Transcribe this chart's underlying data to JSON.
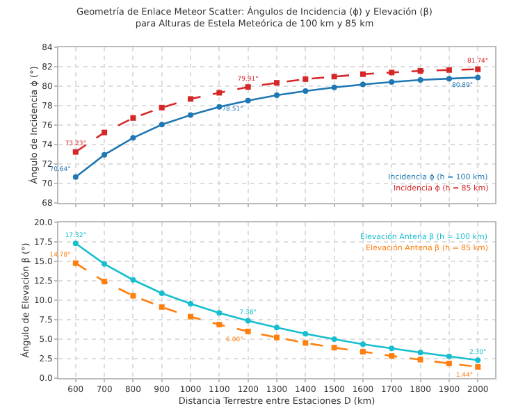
{
  "chart_data": [
    {
      "type": "line",
      "title": "Geometría de Enlace Meteor Scatter: Ángulos de Incidencia (ϕ) y Elevación (β)\npara Alturas de Estela Meteórica de 100 km y 85 km",
      "ylabel": "Ángulo de Incidencia ϕ (°)",
      "x": [
        600,
        700,
        800,
        900,
        1000,
        1100,
        1200,
        1300,
        1400,
        1500,
        1600,
        1700,
        1800,
        1900,
        2000
      ],
      "xlim": [
        540,
        2060
      ],
      "xticks": [
        600,
        700,
        800,
        900,
        1000,
        1100,
        1200,
        1300,
        1400,
        1500,
        1600,
        1700,
        1800,
        1900,
        2000
      ],
      "ylim": [
        68,
        84
      ],
      "yticks": [
        68,
        70,
        72,
        74,
        76,
        78,
        80,
        82,
        84
      ],
      "grid": true,
      "legend": "bottom right",
      "tick_labels": "y",
      "series": [
        {
          "name": "Incidencia ϕ (h = 100 km)",
          "color": "#1f77b4",
          "marker": "circle",
          "line_style": "solid",
          "values": [
            70.64,
            72.94,
            74.68,
            76.04,
            77.02,
            77.87,
            78.51,
            79.06,
            79.49,
            79.87,
            80.17,
            80.43,
            80.64,
            80.77,
            80.89
          ],
          "value_labels": [
            "70.64°",
            null,
            null,
            null,
            null,
            null,
            "78.51°",
            null,
            null,
            null,
            null,
            null,
            null,
            null,
            "80.89°"
          ]
        },
        {
          "name": "Incidencia ϕ (h = 85 km)",
          "color": "#d62728",
          "marker": "square",
          "line_style": "dashed",
          "values": [
            73.23,
            75.23,
            76.72,
            77.79,
            78.68,
            79.32,
            79.91,
            80.34,
            80.72,
            80.98,
            81.23,
            81.4,
            81.57,
            81.66,
            81.74
          ],
          "value_labels": [
            "73.23°",
            null,
            null,
            null,
            null,
            null,
            "79.91°",
            null,
            null,
            null,
            null,
            null,
            null,
            null,
            "81.74°"
          ]
        }
      ]
    },
    {
      "type": "line",
      "xlabel": "Distancia Terrestre entre Estaciones D (km)",
      "ylabel": "Ángulo de Elevación β (°)",
      "x": [
        600,
        700,
        800,
        900,
        1000,
        1100,
        1200,
        1300,
        1400,
        1500,
        1600,
        1700,
        1800,
        1900,
        2000
      ],
      "xlim": [
        540,
        2060
      ],
      "xticks": [
        600,
        700,
        800,
        900,
        1000,
        1100,
        1200,
        1300,
        1400,
        1500,
        1600,
        1700,
        1800,
        1900,
        2000
      ],
      "ylim": [
        0,
        20
      ],
      "yticks": [
        {
          "value": 0,
          "label": "0.0"
        },
        2.5,
        {
          "value": 5,
          "label": "5.0"
        },
        7.5,
        {
          "value": 10,
          "label": "10.0"
        },
        12.5,
        {
          "value": 15,
          "label": "15.0"
        },
        17.5,
        {
          "value": 20,
          "label": "20.0"
        }
      ],
      "grid": true,
      "legend": "top right",
      "series": [
        {
          "name": "Elevación Antena β (h = 100 km)",
          "color": "#17becf",
          "marker": "circle",
          "line_style": "solid",
          "values": [
            17.32,
            14.68,
            12.63,
            10.91,
            9.57,
            8.39,
            7.38,
            6.51,
            5.7,
            5.0,
            4.35,
            3.82,
            3.28,
            2.8,
            2.3
          ],
          "value_labels": [
            "17.32°",
            null,
            null,
            null,
            null,
            null,
            "7.38°",
            null,
            null,
            null,
            null,
            null,
            null,
            null,
            "2.30°"
          ]
        },
        {
          "name": "Elevación Antena β (h = 85 km)",
          "color": "#ff7f0e",
          "marker": "square",
          "line_style": "dashed",
          "values": [
            14.78,
            12.42,
            10.59,
            9.14,
            7.9,
            6.88,
            6.0,
            5.22,
            4.52,
            3.92,
            3.39,
            2.85,
            2.37,
            1.88,
            1.44
          ],
          "value_labels": [
            "14.78°",
            null,
            null,
            null,
            null,
            null,
            "6.00°",
            null,
            null,
            null,
            null,
            null,
            null,
            null,
            "1.44°"
          ]
        }
      ]
    }
  ]
}
